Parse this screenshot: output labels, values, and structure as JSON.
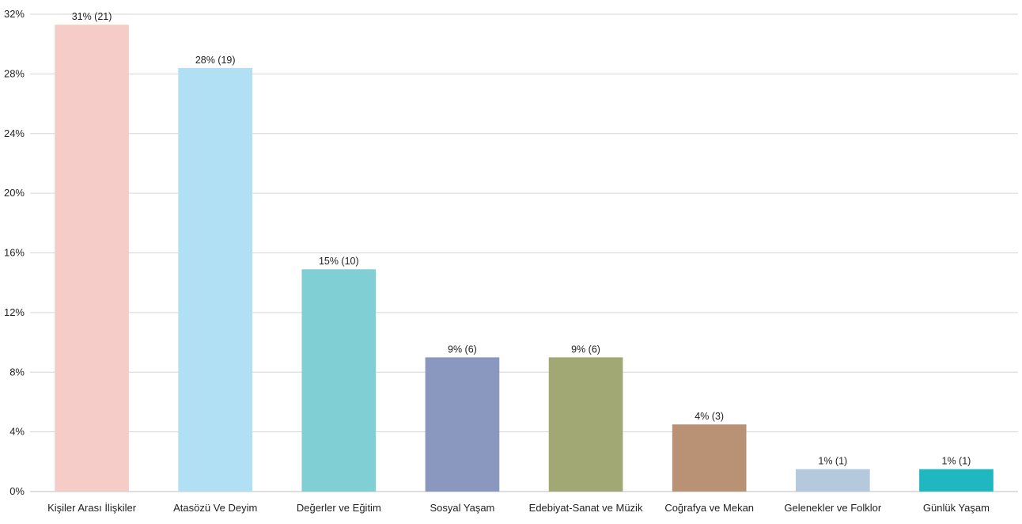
{
  "chart_data": {
    "type": "bar",
    "title": "",
    "xlabel": "",
    "ylabel": "",
    "ylim": [
      0,
      32
    ],
    "y_ticks": [
      0,
      4,
      8,
      12,
      16,
      20,
      24,
      28,
      32
    ],
    "y_tick_labels": [
      "0%",
      "4%",
      "8%",
      "12%",
      "16%",
      "20%",
      "24%",
      "28%",
      "32%"
    ],
    "grid": true,
    "legend": "none",
    "categories": [
      "Kişiler Arası İlişkiler",
      "Atasözü Ve Deyim",
      "Değerler ve Eğitim",
      "Sosyal Yaşam",
      "Edebiyat-Sanat ve Müzik",
      "Coğrafya ve Mekan",
      "Gelenekler ve Folklor",
      "Günlük Yaşam"
    ],
    "values": [
      31.3,
      28.4,
      14.9,
      9.0,
      9.0,
      4.5,
      1.5,
      1.5
    ],
    "counts": [
      21,
      19,
      10,
      6,
      6,
      3,
      1,
      1
    ],
    "data_labels": [
      "31% (21)",
      "28% (19)",
      "15% (10)",
      "9% (6)",
      "9% (6)",
      "4% (3)",
      "1% (1)",
      "1% (1)"
    ],
    "colors": [
      "#f6ccc8",
      "#b1e0f5",
      "#80cfd4",
      "#8a98c0",
      "#a1a874",
      "#b99174",
      "#b5c9dc",
      "#20b8c0"
    ]
  }
}
